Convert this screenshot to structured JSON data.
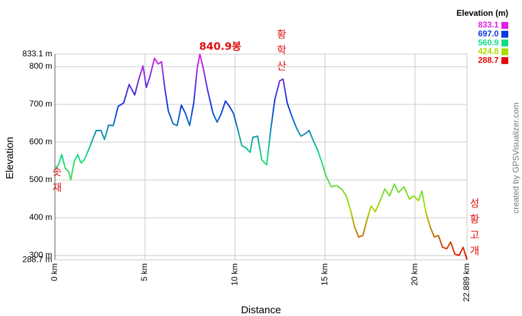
{
  "chart_data": {
    "type": "line",
    "x_label": "Distance",
    "y_label": "Elevation",
    "credit": "created by GPSVisualizer.com",
    "legend_title": "Elevation (m)",
    "legend": [
      {
        "value": 833.1,
        "label": "833.1",
        "color": "#e020e0"
      },
      {
        "value": 697.0,
        "label": "697.0",
        "color": "#0838e0"
      },
      {
        "value": 560.9,
        "label": "560.9",
        "color": "#10dc88"
      },
      {
        "value": 424.8,
        "label": "424.8",
        "color": "#a8dc00"
      },
      {
        "value": 288.7,
        "label": "288.7",
        "color": "#e00808"
      }
    ],
    "annotations": [
      "840.9봉",
      "황학산",
      "솟재",
      "성황고개"
    ],
    "xlim": [
      0,
      22.889
    ],
    "ylim": [
      288.7,
      833.1
    ],
    "xticks": [
      {
        "value": 0,
        "label": "0 km"
      },
      {
        "value": 5,
        "label": "5 km"
      },
      {
        "value": 10,
        "label": "10 km"
      },
      {
        "value": 15,
        "label": "15 km"
      },
      {
        "value": 20,
        "label": "20 km"
      },
      {
        "value": 22.889,
        "label": "22.889 km"
      }
    ],
    "yticks": [
      {
        "value": 288.7,
        "label": "288.7 m"
      },
      {
        "value": 300,
        "label": "300 m"
      },
      {
        "value": 400,
        "label": "400 m"
      },
      {
        "value": 500,
        "label": "500 m"
      },
      {
        "value": 600,
        "label": "600 m"
      },
      {
        "value": 700,
        "label": "700 m"
      },
      {
        "value": 800,
        "label": "800 m"
      },
      {
        "value": 833.1,
        "label": "833.1 m"
      }
    ],
    "grid": true,
    "x": [
      0,
      0.19,
      0.38,
      0.57,
      0.76,
      0.88,
      1.07,
      1.26,
      1.45,
      1.64,
      1.91,
      2.29,
      2.56,
      2.75,
      2.98,
      3.24,
      3.51,
      3.82,
      4.12,
      4.43,
      4.66,
      4.89,
      5.08,
      5.27,
      5.53,
      5.73,
      5.92,
      6.11,
      6.3,
      6.56,
      6.79,
      7.02,
      7.25,
      7.48,
      7.71,
      7.9,
      8.05,
      8.24,
      8.47,
      8.78,
      9.01,
      9.24,
      9.47,
      9.69,
      9.92,
      10.15,
      10.38,
      10.61,
      10.84,
      10.99,
      11.26,
      11.49,
      11.76,
      11.98,
      12.21,
      12.48,
      12.67,
      12.9,
      13.17,
      13.44,
      13.66,
      13.89,
      14.12,
      14.35,
      14.58,
      14.81,
      15.04,
      15.34,
      15.65,
      15.92,
      16.18,
      16.41,
      16.64,
      16.87,
      17.1,
      17.33,
      17.56,
      17.79,
      18.02,
      18.32,
      18.59,
      18.85,
      19.08,
      19.39,
      19.69,
      19.92,
      20.19,
      20.38,
      20.61,
      20.84,
      21.07,
      21.3,
      21.53,
      21.76,
      21.98,
      22.21,
      22.44,
      22.67,
      22.889
    ],
    "values": [
      531,
      540,
      567,
      531,
      522,
      500,
      549,
      567,
      545,
      554,
      585,
      631,
      631,
      607,
      645,
      644,
      695,
      704,
      753,
      725,
      767,
      802,
      745,
      773,
      822,
      807,
      813,
      740,
      682,
      649,
      644,
      698,
      676,
      644,
      704,
      795,
      833.1,
      795,
      740,
      676,
      653,
      676,
      709,
      695,
      676,
      635,
      591,
      585,
      573,
      613,
      616,
      553,
      540,
      631,
      713,
      762,
      767,
      704,
      667,
      635,
      616,
      622,
      631,
      604,
      580,
      549,
      513,
      482,
      485,
      476,
      458,
      422,
      376,
      349,
      353,
      394,
      431,
      416,
      440,
      476,
      458,
      489,
      467,
      482,
      449,
      458,
      445,
      471,
      413,
      376,
      349,
      353,
      322,
      318,
      336,
      304,
      300,
      322,
      288.7
    ]
  }
}
